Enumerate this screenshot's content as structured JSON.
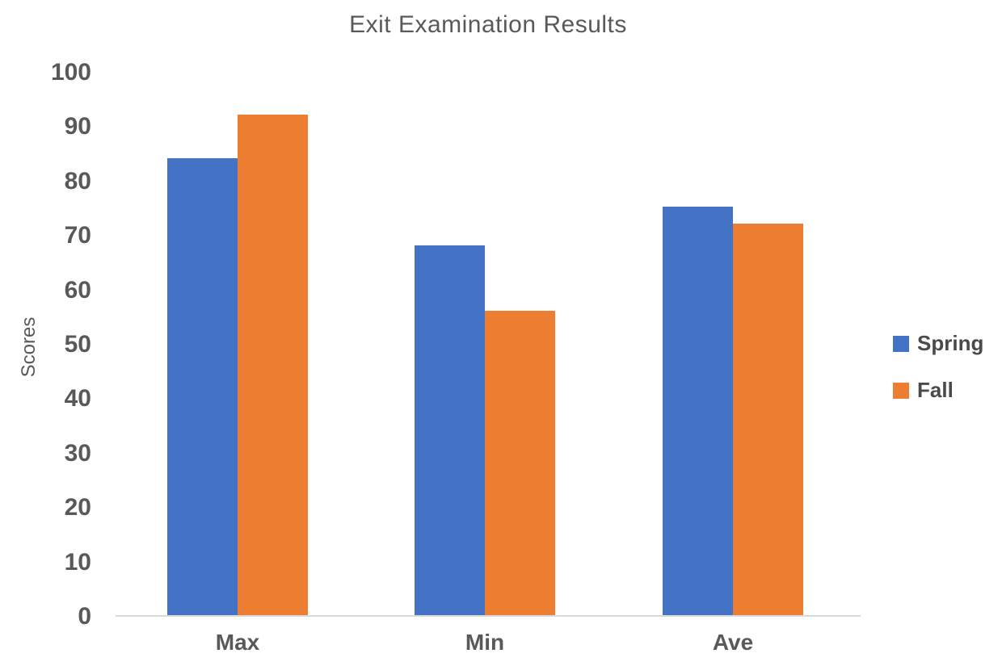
{
  "chart_data": {
    "type": "bar",
    "title": "Exit Examination Results",
    "xlabel": "",
    "ylabel": "Scores",
    "categories": [
      "Max",
      "Min",
      "Ave"
    ],
    "series": [
      {
        "name": "Spring",
        "color": "#4472C4",
        "values": [
          84,
          68,
          75
        ]
      },
      {
        "name": "Fall",
        "color": "#ED7D31",
        "values": [
          92,
          56,
          72
        ]
      }
    ],
    "ylim": [
      0,
      100
    ],
    "ytick_step": 10,
    "yticks": [
      0,
      10,
      20,
      30,
      40,
      50,
      60,
      70,
      80,
      90,
      100
    ],
    "grid": false,
    "legend_position": "right"
  },
  "colors": {
    "background": "#FFFFFF",
    "text": "#595959",
    "axis_line": "#D9D9D9"
  }
}
